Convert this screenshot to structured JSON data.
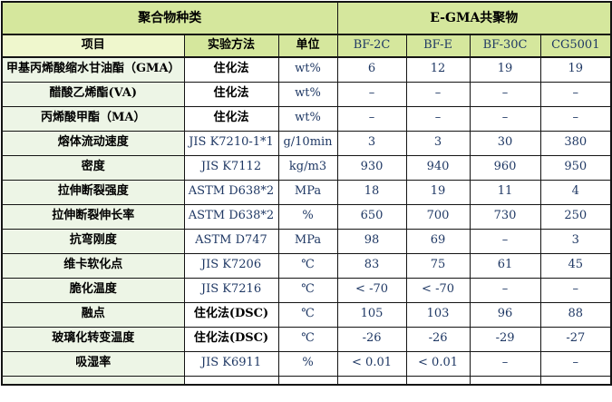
{
  "table": {
    "group_headers": [
      {
        "label": "聚合物种类",
        "colspan": 3
      },
      {
        "label": "E-GMA共聚物",
        "colspan": 4
      }
    ],
    "columns": [
      "项目",
      "实验方法",
      "单位",
      "BF-2C",
      "BF-E",
      "BF-30C",
      "CG5001"
    ],
    "rows": [
      [
        "甲基丙烯酸缩水甘油酯（GMA）",
        "住化法",
        "wt%",
        "6",
        "12",
        "19",
        "19"
      ],
      [
        "醋酸乙烯酯(VA)",
        "住化法",
        "wt%",
        "–",
        "–",
        "–",
        "–"
      ],
      [
        "丙烯酸甲酯（MA）",
        "住化法",
        "wt%",
        "–",
        "–",
        "–",
        "–"
      ],
      [
        "熔体流动速度",
        "JIS K7210-1*1",
        "g/10min",
        "3",
        "3",
        "30",
        "380"
      ],
      [
        "密度",
        "JIS K7112",
        "kg/m3",
        "930",
        "940",
        "960",
        "950"
      ],
      [
        "拉伸断裂强度",
        "ASTM D638*2",
        "MPa",
        "18",
        "19",
        "11",
        "4"
      ],
      [
        "拉伸断裂伸长率",
        "ASTM D638*2",
        "%",
        "650",
        "700",
        "730",
        "250"
      ],
      [
        "抗弯刚度",
        "ASTM D747",
        "MPa",
        "98",
        "69",
        "–",
        "3"
      ],
      [
        "维卡软化点",
        "JIS K7206",
        "℃",
        "83",
        "75",
        "61",
        "45"
      ],
      [
        "脆化温度",
        "JIS K7216",
        "℃",
        "< -70",
        "< -70",
        "–",
        "–"
      ],
      [
        "融点",
        "住化法(DSC)",
        "℃",
        "105",
        "103",
        "96",
        "88"
      ],
      [
        "玻璃化转变温度",
        "住化法(DSC)",
        "℃",
        "-26",
        "-26",
        "-29",
        "-27"
      ],
      [
        "吸湿率",
        "JIS K6911",
        "%",
        "< 0.01",
        "< 0.01",
        "–",
        "–"
      ]
    ],
    "colors": {
      "header_green": "#d5e79d",
      "item_header_cell": "#eff7cd",
      "row_label_column": "#edf5e6",
      "border": "#141414",
      "latin_text": "#1f3864",
      "cjk_text": "#000000"
    }
  }
}
